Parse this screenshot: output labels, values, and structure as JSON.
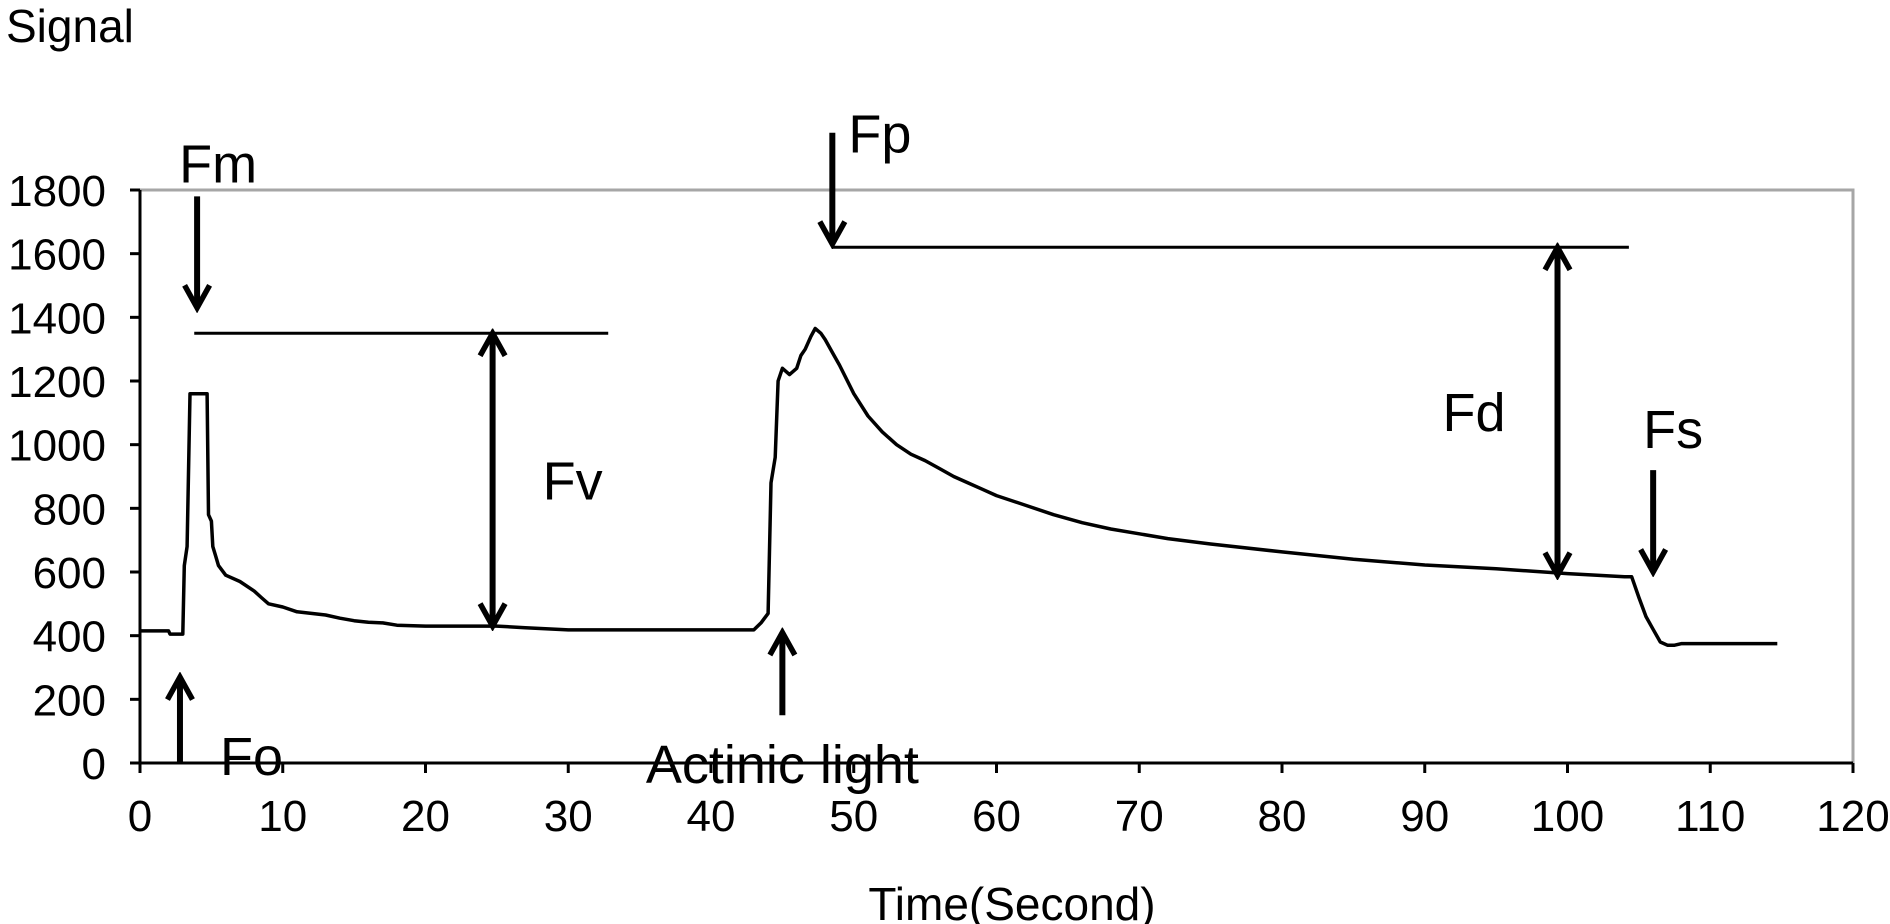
{
  "chart_data": {
    "type": "line",
    "ylabel": "Signal",
    "xlabel": "Time(Second)",
    "xlim": [
      0,
      120
    ],
    "ylim": [
      0,
      1800
    ],
    "xticks": [
      0,
      10,
      20,
      30,
      40,
      50,
      60,
      70,
      80,
      90,
      100,
      110,
      120
    ],
    "yticks": [
      0,
      200,
      400,
      600,
      800,
      1000,
      1200,
      1400,
      1600,
      1800
    ],
    "grid": false,
    "series": [
      {
        "x": [
          0,
          2,
          2.1,
          3,
          3.1,
          3.3,
          3.5,
          3.6,
          4.7,
          4.8,
          5,
          5.1,
          5.3,
          5.5,
          6,
          7,
          8,
          8.5,
          9,
          10,
          11,
          12,
          13,
          14,
          15,
          16,
          17,
          18,
          20,
          22,
          25,
          27,
          30,
          35,
          40,
          43,
          43.5,
          44,
          44.2,
          44.5,
          44.7,
          45,
          45.5,
          46,
          46.3,
          46.6,
          47,
          47.3,
          47.7,
          48,
          48.5,
          49,
          50,
          51,
          52,
          53,
          54,
          55,
          56,
          57,
          58,
          59,
          60,
          62,
          64,
          66,
          68,
          70,
          72,
          75,
          80,
          85,
          90,
          95,
          100,
          104,
          104.5,
          105,
          105.5,
          106,
          106.5,
          107,
          107.5,
          108,
          109,
          110,
          112,
          114.7
        ],
        "y": [
          415,
          415,
          405,
          405,
          620,
          680,
          1160,
          1160,
          1160,
          780,
          760,
          680,
          650,
          620,
          590,
          570,
          540,
          520,
          500,
          490,
          475,
          470,
          465,
          455,
          447,
          442,
          440,
          433,
          430,
          430,
          430,
          425,
          418,
          418,
          418,
          418,
          440,
          470,
          880,
          960,
          1200,
          1240,
          1220,
          1240,
          1280,
          1300,
          1340,
          1365,
          1350,
          1330,
          1290,
          1250,
          1160,
          1090,
          1040,
          1000,
          970,
          950,
          925,
          900,
          880,
          860,
          840,
          810,
          780,
          755,
          735,
          720,
          705,
          688,
          663,
          640,
          622,
          610,
          595,
          585,
          585,
          520,
          460,
          420,
          380,
          370,
          370,
          375,
          375,
          375,
          375,
          375
        ]
      }
    ],
    "reference_lines": [
      {
        "label": "Fm",
        "y": 1350,
        "x": [
          3.8,
          32.8
        ]
      },
      {
        "label": "Fp",
        "y": 1620,
        "x": [
          48.5,
          104.3
        ]
      }
    ],
    "annotations": [
      {
        "text": "Fm",
        "arrow": "down",
        "x": 4,
        "y_from": 1780,
        "y_to": 1430
      },
      {
        "text": "Fp",
        "arrow": "down",
        "x": 48.5,
        "y_from": 1980,
        "y_to": 1630
      },
      {
        "text": "Fo",
        "arrow": "up",
        "x": 2.8,
        "y_from": 0,
        "y_to": 270
      },
      {
        "text": "Actinic light",
        "arrow": "up",
        "x": 45,
        "y_from": 150,
        "y_to": 410
      },
      {
        "text": "Fs",
        "arrow": "down",
        "x": 106,
        "y_from": 920,
        "y_to": 600
      },
      {
        "text": "Fv",
        "arrow": "both",
        "x": 24.7,
        "y_from": 430,
        "y_to": 1350
      },
      {
        "text": "Fd",
        "arrow": "both",
        "x": 99.3,
        "y_from": 590,
        "y_to": 1620
      }
    ]
  }
}
